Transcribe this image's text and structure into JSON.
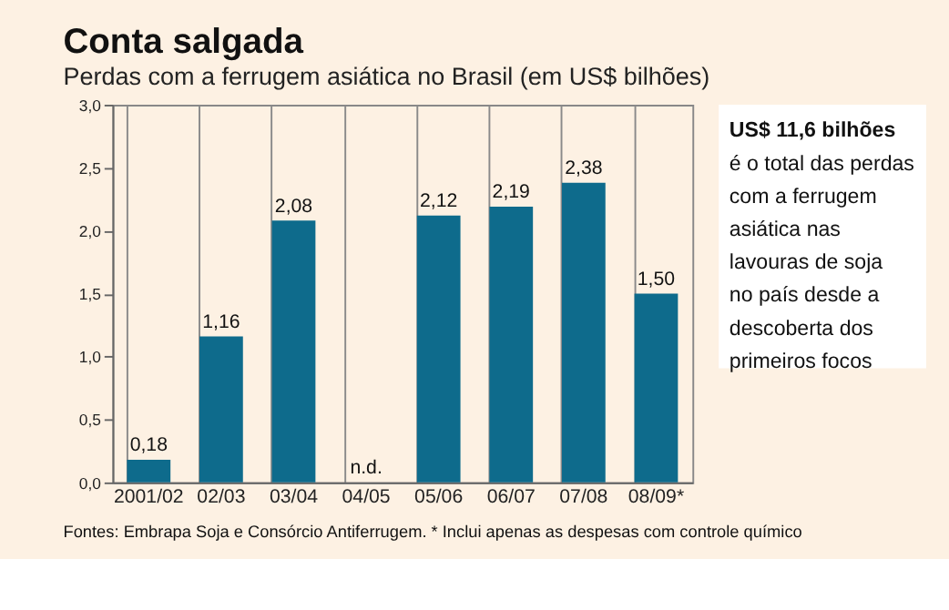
{
  "chart_data": {
    "type": "bar",
    "title": "Conta salgada",
    "subtitle": "Perdas com a ferrugem asiática no Brasil (em US$ bilhões)",
    "categories": [
      "2001/02",
      "02/03",
      "03/04",
      "04/05",
      "05/06",
      "06/07",
      "07/08",
      "08/09*"
    ],
    "values": [
      0.18,
      1.16,
      2.08,
      null,
      2.12,
      2.19,
      2.38,
      1.5
    ],
    "value_labels": [
      "0,18",
      "1,16",
      "2,08",
      "n.d.",
      "2,12",
      "2,19",
      "2,38",
      "1,50"
    ],
    "color": "#0e6b8c",
    "ylim": [
      0,
      3
    ],
    "yticks": [
      {
        "value": 0,
        "label": "0,0"
      },
      {
        "value": 0.5,
        "label": "0,5"
      },
      {
        "value": 1,
        "label": "1,0"
      },
      {
        "value": 1.5,
        "label": "1,5"
      },
      {
        "value": 2,
        "label": "2,0"
      },
      {
        "value": 2.5,
        "label": "2,5"
      },
      {
        "value": 3,
        "label": "3,0"
      }
    ],
    "grid": "x",
    "annotations": [
      "US$ 11,6 bilhões\né o total das perdas\ncom a ferrugem\nasiática nas\nlavouras de soja\nno país desde a\ndescoberta dos\nprimeiros focos",
      "Fontes: Embrapa Soja e Consórcio Antiferrugem. * Inclui apenas as despesas com controle químico"
    ]
  }
}
